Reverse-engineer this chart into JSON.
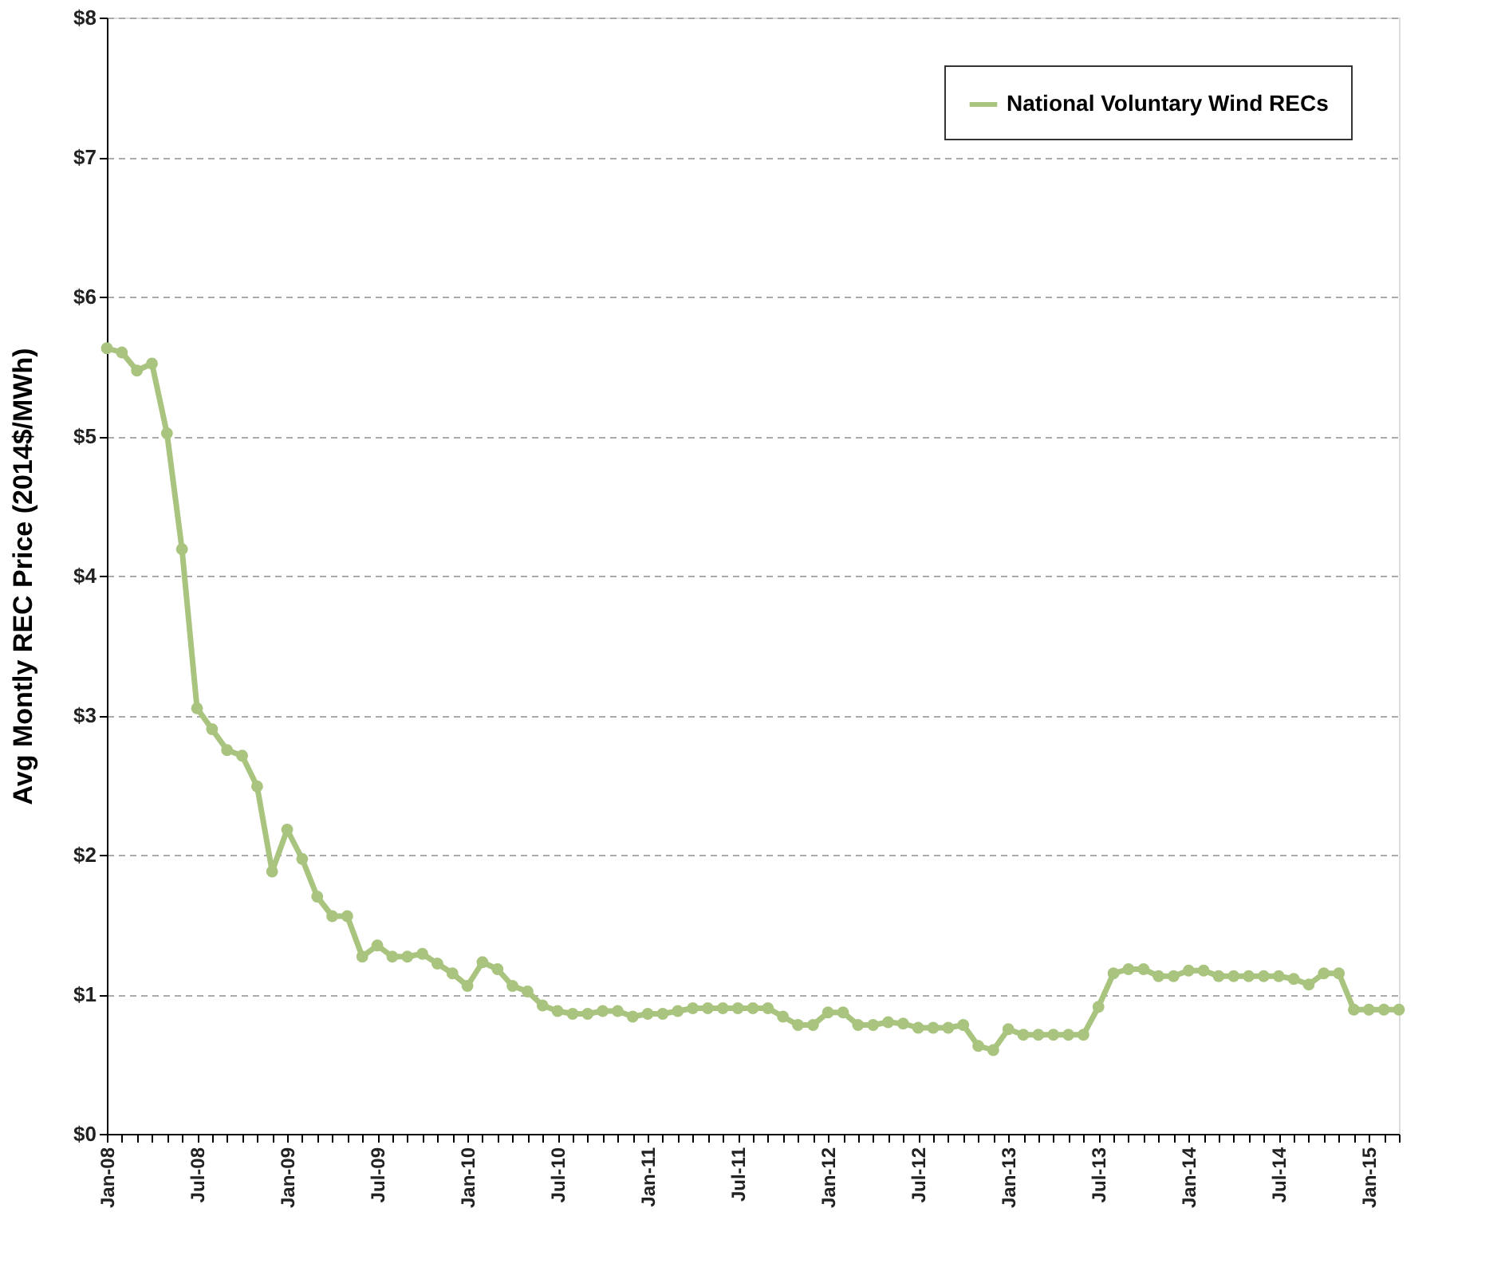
{
  "chart_data": {
    "type": "line",
    "ylabel": "Avg Montly REC Price (2014$/MWh)",
    "categories": [
      "Jan-08",
      null,
      null,
      null,
      null,
      null,
      "Jul-08",
      null,
      null,
      null,
      null,
      null,
      "Jan-09",
      null,
      null,
      null,
      null,
      null,
      "Jul-09",
      null,
      null,
      null,
      null,
      null,
      "Jan-10",
      null,
      null,
      null,
      null,
      null,
      "Jul-10",
      null,
      null,
      null,
      null,
      null,
      "Jan-11",
      null,
      null,
      null,
      null,
      null,
      "Jul-11",
      null,
      null,
      null,
      null,
      null,
      "Jan-12",
      null,
      null,
      null,
      null,
      null,
      "Jul-12",
      null,
      null,
      null,
      null,
      null,
      "Jan-13",
      null,
      null,
      null,
      null,
      null,
      "Jul-13",
      null,
      null,
      null,
      null,
      null,
      "Jan-14",
      null,
      null,
      null,
      null,
      null,
      "Jul-14",
      null,
      null,
      null,
      null,
      null,
      "Jan-15",
      null,
      null
    ],
    "series": [
      {
        "name": "National Voluntary Wind RECs",
        "color": "#a9c47f",
        "values": [
          5.63,
          5.6,
          5.47,
          5.52,
          5.02,
          4.19,
          3.05,
          2.9,
          2.75,
          2.71,
          2.49,
          1.88,
          2.18,
          1.97,
          1.7,
          1.56,
          1.56,
          1.27,
          1.35,
          1.27,
          1.27,
          1.29,
          1.22,
          1.15,
          1.06,
          1.23,
          1.18,
          1.06,
          1.02,
          0.92,
          0.88,
          0.86,
          0.86,
          0.88,
          0.88,
          0.84,
          0.86,
          0.86,
          0.88,
          0.9,
          0.9,
          0.9,
          0.9,
          0.9,
          0.9,
          0.84,
          0.78,
          0.78,
          0.87,
          0.87,
          0.78,
          0.78,
          0.8,
          0.79,
          0.76,
          0.76,
          0.76,
          0.78,
          0.63,
          0.6,
          0.75,
          0.71,
          0.71,
          0.71,
          0.71,
          0.71,
          0.91,
          1.15,
          1.18,
          1.18,
          1.13,
          1.13,
          1.17,
          1.17,
          1.13,
          1.13,
          1.13,
          1.13,
          1.13,
          1.11,
          1.07,
          1.15,
          1.15,
          0.89,
          0.89,
          0.89,
          0.89
        ]
      }
    ],
    "ylim": [
      0,
      8
    ],
    "yticks": [
      {
        "value": 0,
        "label": "$0"
      },
      {
        "value": 1,
        "label": "$1"
      },
      {
        "value": 2,
        "label": "$2"
      },
      {
        "value": 3,
        "label": "$3"
      },
      {
        "value": 4,
        "label": "$4"
      },
      {
        "value": 5,
        "label": "$5"
      },
      {
        "value": 6,
        "label": "$6"
      },
      {
        "value": 7,
        "label": "$7"
      },
      {
        "value": 8,
        "label": "$8"
      }
    ],
    "grid": "y",
    "legend": "top right",
    "marker": "circle",
    "line_style": "solid"
  }
}
